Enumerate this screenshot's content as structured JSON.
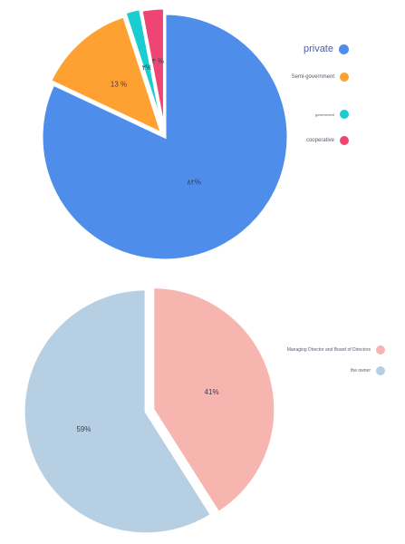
{
  "chart_data": [
    {
      "type": "pie",
      "title": "",
      "slices": [
        {
          "label": "private",
          "value": 82,
          "display": "۸۲%",
          "color": "#4f8deb"
        },
        {
          "label": "Semi-government",
          "value": 13,
          "display": "13 %",
          "color": "#ffa033"
        },
        {
          "label": "government",
          "value": 2,
          "display": "۲%",
          "color": "#19cdd0"
        },
        {
          "label": "cooperative",
          "value": 3,
          "display": "۳ %",
          "color": "#ee4575"
        }
      ],
      "legend_position": "right"
    },
    {
      "type": "pie",
      "title": "",
      "slices": [
        {
          "label": "Managing Director and Board of Directors",
          "value": 41,
          "display": "41%",
          "color": "#f7b5b0"
        },
        {
          "label": "the owner",
          "value": 59,
          "display": "59%",
          "color": "#b6cfe3"
        }
      ],
      "legend_position": "right"
    }
  ]
}
